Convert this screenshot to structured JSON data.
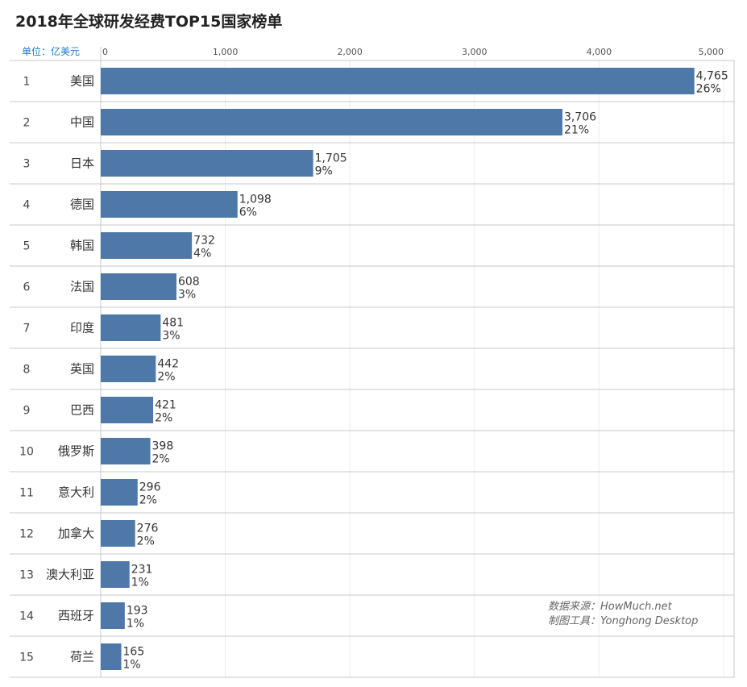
{
  "title": "2018年全球研发经费TOP15国家榜单",
  "unit": "单位：亿美元",
  "source": {
    "line1": "数据来源：HowMuch.net",
    "line2": "制图工具：Yonghong Desktop"
  },
  "chart_data": {
    "type": "bar",
    "orientation": "horizontal",
    "title": "2018年全球研发经费TOP15国家榜单",
    "xlim": [
      0,
      5000
    ],
    "ticks": [
      0,
      1000,
      2000,
      3000,
      4000,
      5000
    ],
    "tick_labels": [
      "0",
      "1,000",
      "2,000",
      "3,000",
      "4,000",
      "5,000"
    ],
    "ranks": [
      "1",
      "2",
      "3",
      "4",
      "5",
      "6",
      "7",
      "8",
      "9",
      "10",
      "11",
      "12",
      "13",
      "14",
      "15"
    ],
    "categories": [
      "美国",
      "中国",
      "日本",
      "德国",
      "韩国",
      "法国",
      "印度",
      "英国",
      "巴西",
      "俄罗斯",
      "意大利",
      "加拿大",
      "澳大利亚",
      "西班牙",
      "荷兰"
    ],
    "values": [
      4765,
      3706,
      1705,
      1098,
      732,
      608,
      481,
      442,
      421,
      398,
      296,
      276,
      231,
      193,
      165
    ],
    "value_labels": [
      "4,765",
      "3,706",
      "1,705",
      "1,098",
      "732",
      "608",
      "481",
      "442",
      "421",
      "398",
      "296",
      "276",
      "231",
      "193",
      "165"
    ],
    "percent_labels": [
      "26%",
      "21%",
      "9%",
      "6%",
      "4%",
      "3%",
      "3%",
      "2%",
      "2%",
      "2%",
      "2%",
      "2%",
      "1%",
      "1%",
      "1%"
    ],
    "bar_color": "#4e78a8",
    "grid": true
  }
}
